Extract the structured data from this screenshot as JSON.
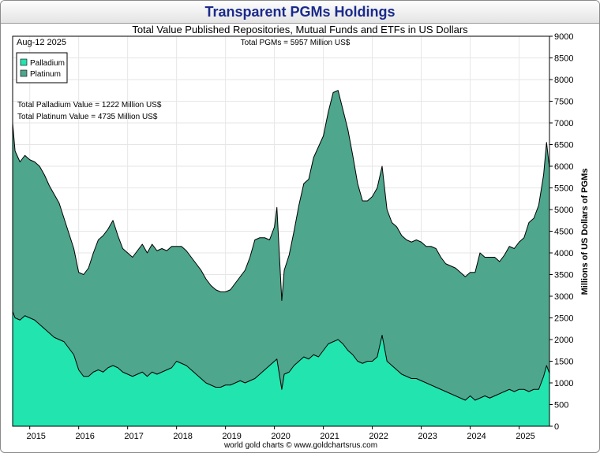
{
  "chart_data": {
    "type": "area",
    "title": "Transparent PGMs Holdings",
    "subtitle": "Total Value Published Repositories, Mutual Funds and ETFs in US Dollars",
    "date_label": "Aug-12  2025",
    "total_label": "Total PGMs = 5957 Million US$",
    "annotations": [
      "Total Palladium Value = 1222 Million US$",
      "Total Platinum Value = 4735 Million US$"
    ],
    "ylabel": "Millions of US Dollars of PGMs",
    "xlabel": "",
    "credit": "world gold charts © www.goldchartsrus.com",
    "ylim": [
      0,
      9000
    ],
    "yticks": [
      0,
      500,
      1000,
      1500,
      2000,
      2500,
      3000,
      3500,
      4000,
      4500,
      5000,
      5500,
      6000,
      6500,
      7000,
      7500,
      8000,
      8500,
      9000
    ],
    "xlim": [
      2014.65,
      2025.62
    ],
    "xticks": [
      {
        "label": "2015",
        "value": 2015.0
      },
      {
        "label": "2016",
        "value": 2016.0
      },
      {
        "label": "2017",
        "value": 2017.0
      },
      {
        "label": "2018",
        "value": 2018.0
      },
      {
        "label": "2019",
        "value": 2019.0
      },
      {
        "label": "2020",
        "value": 2020.0
      },
      {
        "label": "2021",
        "value": 2021.0
      },
      {
        "label": "2022",
        "value": 2022.0
      },
      {
        "label": "2023",
        "value": 2023.0
      },
      {
        "label": "2024",
        "value": 2024.0
      },
      {
        "label": "2025",
        "value": 2025.0
      }
    ],
    "legend": {
      "placement": "top-left",
      "entries": [
        "Palladium",
        "Platinum"
      ]
    },
    "stacked": true,
    "x": [
      2014.65,
      2014.7,
      2014.8,
      2014.9,
      2015.0,
      2015.1,
      2015.2,
      2015.3,
      2015.4,
      2015.5,
      2015.6,
      2015.7,
      2015.8,
      2015.9,
      2016.0,
      2016.1,
      2016.2,
      2016.3,
      2016.4,
      2016.5,
      2016.6,
      2016.7,
      2016.8,
      2016.9,
      2017.0,
      2017.1,
      2017.2,
      2017.3,
      2017.4,
      2017.5,
      2017.6,
      2017.7,
      2017.8,
      2017.9,
      2018.0,
      2018.1,
      2018.2,
      2018.3,
      2018.4,
      2018.5,
      2018.6,
      2018.7,
      2018.8,
      2018.9,
      2019.0,
      2019.1,
      2019.2,
      2019.3,
      2019.4,
      2019.5,
      2019.6,
      2019.7,
      2019.8,
      2019.9,
      2020.0,
      2020.05,
      2020.15,
      2020.2,
      2020.3,
      2020.4,
      2020.5,
      2020.6,
      2020.7,
      2020.8,
      2020.9,
      2021.0,
      2021.1,
      2021.2,
      2021.3,
      2021.4,
      2021.5,
      2021.6,
      2021.7,
      2021.8,
      2021.9,
      2022.0,
      2022.1,
      2022.2,
      2022.3,
      2022.4,
      2022.5,
      2022.6,
      2022.7,
      2022.8,
      2022.9,
      2023.0,
      2023.1,
      2023.2,
      2023.3,
      2023.4,
      2023.5,
      2023.6,
      2023.7,
      2023.8,
      2023.9,
      2024.0,
      2024.1,
      2024.2,
      2024.3,
      2024.4,
      2024.5,
      2024.6,
      2024.7,
      2024.8,
      2024.9,
      2025.0,
      2025.1,
      2025.2,
      2025.3,
      2025.4,
      2025.5,
      2025.56,
      2025.62
    ],
    "series": [
      {
        "name": "Palladium",
        "color": "#22e4ae",
        "values": [
          2650,
          2500,
          2450,
          2550,
          2500,
          2450,
          2350,
          2250,
          2150,
          2050,
          2000,
          1950,
          1800,
          1650,
          1300,
          1150,
          1150,
          1250,
          1300,
          1250,
          1350,
          1400,
          1350,
          1250,
          1200,
          1150,
          1200,
          1250,
          1150,
          1250,
          1200,
          1250,
          1300,
          1350,
          1500,
          1450,
          1400,
          1300,
          1200,
          1100,
          1000,
          950,
          900,
          900,
          950,
          950,
          1000,
          1050,
          1000,
          1050,
          1100,
          1200,
          1300,
          1400,
          1500,
          1550,
          850,
          1200,
          1250,
          1400,
          1500,
          1600,
          1550,
          1650,
          1600,
          1750,
          1900,
          1950,
          2000,
          1900,
          1750,
          1650,
          1500,
          1450,
          1500,
          1500,
          1600,
          2100,
          1500,
          1400,
          1300,
          1200,
          1150,
          1100,
          1100,
          1050,
          1000,
          950,
          900,
          850,
          800,
          750,
          700,
          650,
          600,
          700,
          600,
          650,
          700,
          650,
          700,
          750,
          800,
          850,
          800,
          850,
          850,
          800,
          850,
          850,
          1150,
          1400,
          1222
        ]
      },
      {
        "name": "Platinum",
        "color": "#4ea68c",
        "values": [
          4350,
          3850,
          3650,
          3700,
          3650,
          3650,
          3650,
          3550,
          3400,
          3300,
          3150,
          2850,
          2650,
          2450,
          2250,
          2350,
          2500,
          2750,
          3000,
          3150,
          3200,
          3350,
          3050,
          2850,
          2800,
          2750,
          2850,
          2950,
          2850,
          2950,
          2850,
          2850,
          2750,
          2800,
          2650,
          2700,
          2650,
          2600,
          2550,
          2500,
          2400,
          2300,
          2250,
          2200,
          2150,
          2200,
          2300,
          2400,
          2600,
          2850,
          3200,
          3150,
          3050,
          2900,
          3100,
          3500,
          2050,
          2400,
          2700,
          3100,
          3600,
          4000,
          4150,
          4550,
          4850,
          4950,
          5350,
          5750,
          5750,
          5400,
          5100,
          4600,
          4100,
          3750,
          3700,
          3800,
          3900,
          3900,
          3500,
          3300,
          3300,
          3200,
          3150,
          3150,
          3200,
          3200,
          3150,
          3200,
          3200,
          3050,
          2950,
          2950,
          2950,
          2900,
          2850,
          2850,
          2950,
          3350,
          3200,
          3250,
          3200,
          3050,
          3150,
          3300,
          3300,
          3400,
          3500,
          3900,
          3950,
          4250,
          4650,
          5150,
          4735
        ]
      }
    ]
  }
}
